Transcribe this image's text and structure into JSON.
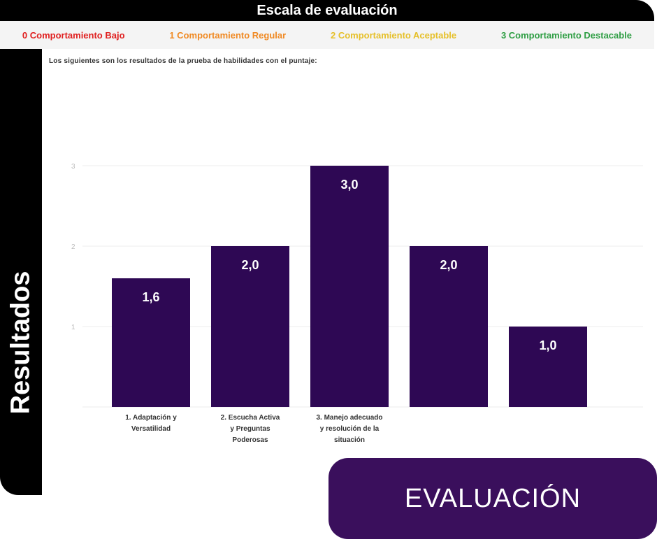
{
  "header": {
    "title": "Escala de evaluación",
    "scale": [
      {
        "label": "0  Comportamiento Bajo",
        "color": "#e02020"
      },
      {
        "label": "1  Comportamiento Regular",
        "color": "#f08a24"
      },
      {
        "label": "2  Comportamiento Aceptable",
        "color": "#e6c02a"
      },
      {
        "label": "3  Comportamiento Destacable",
        "color": "#2f9e44"
      }
    ]
  },
  "sidebar": {
    "label": "Resultados"
  },
  "note": "Los siguientes son los resultados de la prueba de habilidades con el puntaje:",
  "badge": {
    "label": "EVALUACIÓN"
  },
  "colors": {
    "bar": "#2e0854",
    "frame": "#000000",
    "badge": "#3a0f5c"
  },
  "chart_data": {
    "type": "bar",
    "title": "",
    "xlabel": "",
    "ylabel": "",
    "ylim": [
      0,
      3
    ],
    "yticks": [
      "1",
      "2",
      "3"
    ],
    "categories": [
      "1. Adaptación y Versatilidad",
      "2. Escucha Activa y Preguntas Poderosas",
      "3. Manejo adecuado y resolución de la situación",
      "",
      ""
    ],
    "values": [
      1.6,
      2.0,
      3.0,
      2.0,
      1.0
    ],
    "data_labels": [
      "1,6",
      "2,0",
      "3,0",
      "2,0",
      "1,0"
    ]
  }
}
